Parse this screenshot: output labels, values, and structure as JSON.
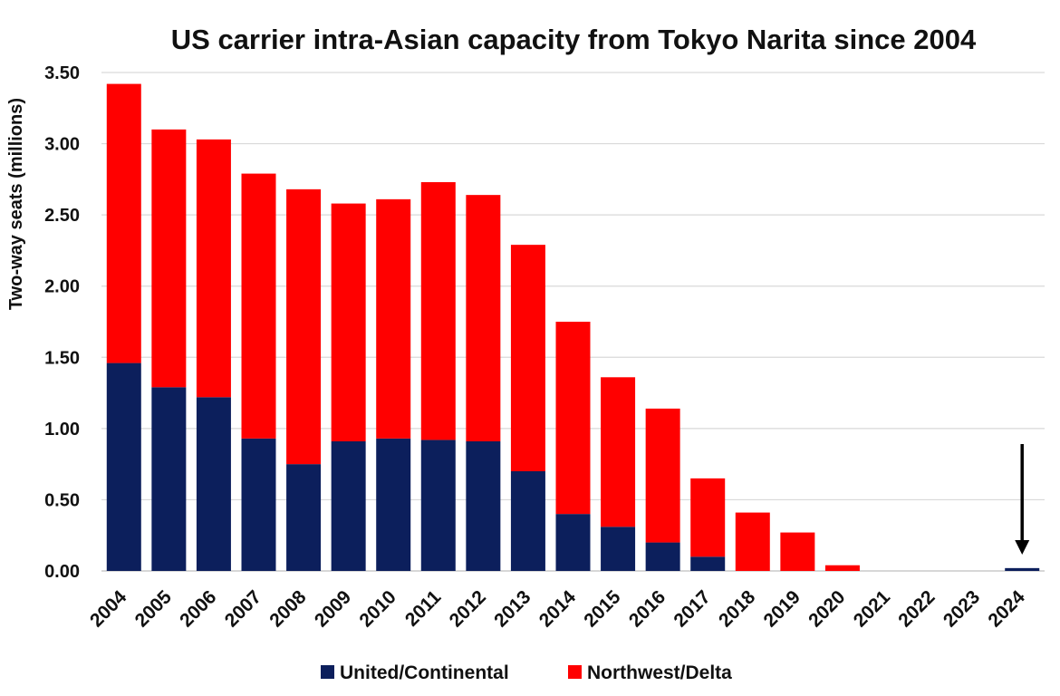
{
  "chart_data": {
    "type": "bar",
    "stacked": true,
    "title": "US carrier intra-Asian capacity from Tokyo Narita since 2004",
    "xlabel": "",
    "ylabel": "Two-way seats (millions)",
    "ylim": [
      0,
      3.5
    ],
    "yticks": [
      "0.00",
      "0.50",
      "1.00",
      "1.50",
      "2.00",
      "2.50",
      "3.00",
      "3.50"
    ],
    "grid": true,
    "legend_position": "bottom",
    "categories": [
      "2004",
      "2005",
      "2006",
      "2007",
      "2008",
      "2009",
      "2010",
      "2011",
      "2012",
      "2013",
      "2014",
      "2015",
      "2016",
      "2017",
      "2018",
      "2019",
      "2020",
      "2021",
      "2022",
      "2023",
      "2024"
    ],
    "series": [
      {
        "name": "United/Continental",
        "color": "#0c1f5c",
        "values": [
          1.46,
          1.29,
          1.22,
          0.93,
          0.75,
          0.91,
          0.93,
          0.92,
          0.91,
          0.7,
          0.4,
          0.31,
          0.2,
          0.1,
          0,
          0,
          0,
          0,
          0,
          0,
          0.02
        ]
      },
      {
        "name": "Northwest/Delta",
        "color": "#ff0000",
        "values": [
          1.96,
          1.81,
          1.81,
          1.86,
          1.93,
          1.67,
          1.68,
          1.81,
          1.73,
          1.59,
          1.35,
          1.05,
          0.94,
          0.55,
          0.41,
          0.27,
          0.04,
          0,
          0,
          0,
          0
        ]
      }
    ],
    "annotations": [
      {
        "type": "arrow",
        "points_to": "2024",
        "direction": "down",
        "color": "#000000"
      }
    ]
  }
}
